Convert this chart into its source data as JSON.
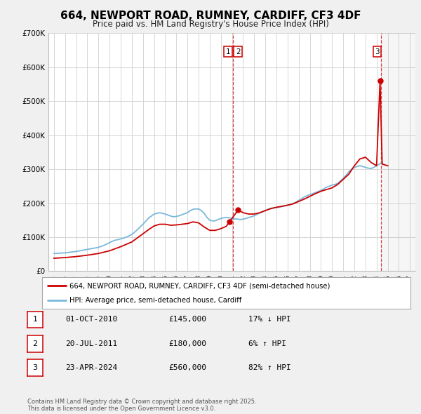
{
  "title": "664, NEWPORT ROAD, RUMNEY, CARDIFF, CF3 4DF",
  "subtitle": "Price paid vs. HM Land Registry's House Price Index (HPI)",
  "title_fontsize": 11,
  "subtitle_fontsize": 8.5,
  "background_color": "#f0f0f0",
  "plot_bg_color": "#ffffff",
  "ylim": [
    0,
    700000
  ],
  "yticks": [
    0,
    100000,
    200000,
    300000,
    400000,
    500000,
    600000,
    700000
  ],
  "ytick_labels": [
    "£0",
    "£100K",
    "£200K",
    "£300K",
    "£400K",
    "£500K",
    "£600K",
    "£700K"
  ],
  "hpi_line_color": "#7ab8d9",
  "price_line_color": "#cc0000",
  "legend_label_price": "664, NEWPORT ROAD, RUMNEY, CARDIFF, CF3 4DF (semi-detached house)",
  "legend_label_hpi": "HPI: Average price, semi-detached house, Cardiff",
  "transactions": [
    {
      "date": 2010.75,
      "price": 145000,
      "label": "1"
    },
    {
      "date": 2011.55,
      "price": 180000,
      "label": "2"
    },
    {
      "date": 2024.31,
      "price": 560000,
      "label": "3"
    }
  ],
  "vline_dates": [
    2011.08,
    2024.38
  ],
  "table_rows": [
    {
      "num": "1",
      "date": "01-OCT-2010",
      "price": "£145,000",
      "hpi": "17% ↓ HPI"
    },
    {
      "num": "2",
      "date": "20-JUL-2011",
      "price": "£180,000",
      "hpi": "6% ↑ HPI"
    },
    {
      "num": "3",
      "date": "23-APR-2024",
      "price": "£560,000",
      "hpi": "82% ↑ HPI"
    }
  ],
  "footer": "Contains HM Land Registry data © Crown copyright and database right 2025.\nThis data is licensed under the Open Government Licence v3.0.",
  "hpi_data_x": [
    1995,
    1995.25,
    1995.5,
    1995.75,
    1996,
    1996.25,
    1996.5,
    1996.75,
    1997,
    1997.25,
    1997.5,
    1997.75,
    1998,
    1998.25,
    1998.5,
    1998.75,
    1999,
    1999.25,
    1999.5,
    1999.75,
    2000,
    2000.25,
    2000.5,
    2000.75,
    2001,
    2001.25,
    2001.5,
    2001.75,
    2002,
    2002.25,
    2002.5,
    2002.75,
    2003,
    2003.25,
    2003.5,
    2003.75,
    2004,
    2004.25,
    2004.5,
    2004.75,
    2005,
    2005.25,
    2005.5,
    2005.75,
    2006,
    2006.25,
    2006.5,
    2006.75,
    2007,
    2007.25,
    2007.5,
    2007.75,
    2008,
    2008.25,
    2008.5,
    2008.75,
    2009,
    2009.25,
    2009.5,
    2009.75,
    2010,
    2010.25,
    2010.5,
    2010.75,
    2011,
    2011.25,
    2011.5,
    2011.75,
    2012,
    2012.25,
    2012.5,
    2012.75,
    2013,
    2013.25,
    2013.5,
    2013.75,
    2014,
    2014.25,
    2014.5,
    2014.75,
    2015,
    2015.25,
    2015.5,
    2015.75,
    2016,
    2016.25,
    2016.5,
    2016.75,
    2017,
    2017.25,
    2017.5,
    2017.75,
    2018,
    2018.25,
    2018.5,
    2018.75,
    2019,
    2019.25,
    2019.5,
    2019.75,
    2020,
    2020.25,
    2020.5,
    2020.75,
    2021,
    2021.25,
    2021.5,
    2021.75,
    2022,
    2022.25,
    2022.5,
    2022.75,
    2023,
    2023.25,
    2023.5,
    2023.75,
    2024,
    2024.25,
    2024.5
  ],
  "hpi_data_y": [
    52000,
    52500,
    53000,
    53500,
    54000,
    55000,
    56000,
    57000,
    58000,
    59500,
    61000,
    62500,
    64000,
    65500,
    67000,
    68500,
    70000,
    73000,
    76000,
    80000,
    84000,
    88000,
    91000,
    93000,
    95000,
    97000,
    100000,
    104000,
    108000,
    115000,
    122000,
    130000,
    138000,
    147000,
    156000,
    162000,
    168000,
    170000,
    172000,
    170000,
    168000,
    165000,
    162000,
    160000,
    161000,
    163000,
    166000,
    169000,
    172000,
    178000,
    182000,
    183000,
    183000,
    178000,
    170000,
    158000,
    150000,
    148000,
    148000,
    152000,
    155000,
    157000,
    158000,
    157000,
    155000,
    154000,
    153000,
    152000,
    153000,
    155000,
    158000,
    160000,
    163000,
    167000,
    171000,
    175000,
    179000,
    182000,
    185000,
    186000,
    187000,
    188000,
    190000,
    192000,
    194000,
    196000,
    199000,
    203000,
    208000,
    213000,
    218000,
    222000,
    225000,
    228000,
    231000,
    234000,
    238000,
    242000,
    247000,
    250000,
    253000,
    255000,
    258000,
    265000,
    273000,
    282000,
    292000,
    300000,
    305000,
    308000,
    310000,
    308000,
    305000,
    303000,
    302000,
    305000,
    310000,
    315000,
    320000
  ],
  "price_data_x": [
    1995,
    1995.5,
    1996,
    1996.5,
    1997,
    1997.5,
    1998,
    1998.5,
    1999,
    1999.5,
    2000,
    2000.5,
    2001,
    2001.5,
    2002,
    2002.5,
    2003,
    2003.5,
    2004,
    2004.5,
    2005,
    2005.5,
    2006,
    2006.5,
    2007,
    2007.5,
    2008,
    2008.5,
    2009,
    2009.5,
    2010,
    2010.5,
    2010.75,
    2011,
    2011.55,
    2012,
    2012.5,
    2013,
    2013.5,
    2014,
    2014.5,
    2015,
    2015.5,
    2016,
    2016.5,
    2017,
    2017.5,
    2018,
    2018.5,
    2019,
    2019.5,
    2020,
    2020.5,
    2021,
    2021.5,
    2022,
    2022.5,
    2023,
    2023.5,
    2024,
    2024.31,
    2024.5,
    2025
  ],
  "price_data_y": [
    38000,
    39000,
    40000,
    41500,
    43000,
    45000,
    47000,
    49500,
    52000,
    56000,
    60000,
    66000,
    72000,
    79000,
    86000,
    98000,
    110000,
    122000,
    133000,
    138000,
    138000,
    135000,
    136000,
    138000,
    140000,
    145000,
    142000,
    130000,
    120000,
    120000,
    125000,
    132000,
    145000,
    155000,
    180000,
    172000,
    168000,
    168000,
    172000,
    178000,
    184000,
    188000,
    191000,
    194000,
    198000,
    205000,
    212000,
    220000,
    228000,
    235000,
    240000,
    245000,
    255000,
    270000,
    285000,
    310000,
    330000,
    335000,
    320000,
    310000,
    560000,
    315000,
    310000
  ]
}
